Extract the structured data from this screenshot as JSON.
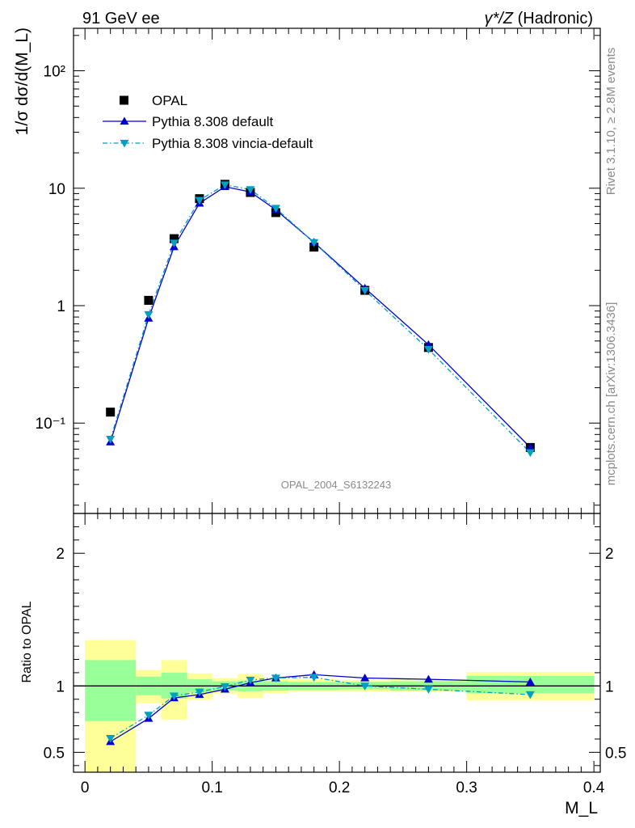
{
  "header": {
    "left": "91 GeV ee",
    "right_prefix": "γ*/Z",
    "right_suffix": " (Hadronic)"
  },
  "side_text": {
    "rivet": "Rivet 3.1.10, ≥ 2.8M events",
    "mcplots": "mcplots.cern.ch [arXiv:1306.3436]"
  },
  "analysis_id": "OPAL_2004_S6132243",
  "colors": {
    "data": "#000000",
    "pythia_default": "#0000cc",
    "pythia_vincia": "#00a0c0",
    "band_inner": "#99ff99",
    "band_outer": "#ffff99"
  },
  "chart_data": [
    {
      "type": "scatter",
      "panel": "main",
      "ylabel": "1/σ dσ/d(M_L)",
      "yscale": "log",
      "ylim": [
        0.017,
        230
      ],
      "xlim": [
        -0.009,
        0.405
      ],
      "y_ticks": [
        "10⁻¹",
        "1",
        "10",
        "10²"
      ],
      "legend_position": "top-left",
      "series": [
        {
          "name": "OPAL",
          "style": "square",
          "x": [
            0.02,
            0.05,
            0.07,
            0.09,
            0.11,
            0.13,
            0.15,
            0.18,
            0.22,
            0.27,
            0.35
          ],
          "values": [
            0.124,
            1.11,
            3.72,
            8.15,
            10.8,
            9.2,
            6.2,
            3.15,
            1.35,
            0.44,
            0.062
          ]
        },
        {
          "name": "Pythia 8.308 default",
          "style": "triangle-up",
          "x": [
            0.02,
            0.05,
            0.07,
            0.09,
            0.11,
            0.13,
            0.15,
            0.18,
            0.22,
            0.27,
            0.35
          ],
          "values": [
            0.069,
            0.78,
            3.17,
            7.45,
            10.3,
            9.3,
            6.55,
            3.46,
            1.41,
            0.465,
            0.062
          ]
        },
        {
          "name": "Pythia 8.308 vincia-default",
          "style": "triangle-down",
          "x": [
            0.02,
            0.05,
            0.07,
            0.09,
            0.11,
            0.13,
            0.15,
            0.18,
            0.22,
            0.27,
            0.35
          ],
          "values": [
            0.073,
            0.84,
            3.42,
            7.9,
            10.7,
            9.75,
            6.75,
            3.45,
            1.35,
            0.425,
            0.056
          ]
        }
      ]
    },
    {
      "type": "line",
      "panel": "ratio",
      "ylabel": "Ratio to OPAL",
      "xlabel": "M_L",
      "ylim": [
        0.35,
        2.3
      ],
      "xlim": [
        -0.009,
        0.405
      ],
      "x_ticks": [
        "0",
        "0.1",
        "0.2",
        "0.3",
        "0.4"
      ],
      "y_ticks": [
        "0.5",
        "1",
        "2"
      ],
      "bands": [
        {
          "x0": 0.0,
          "x1": 0.04,
          "inner": [
            0.735,
            1.195
          ],
          "outer": [
            0.35,
            1.345
          ]
        },
        {
          "x0": 0.04,
          "x1": 0.06,
          "inner": [
            0.93,
            1.07
          ],
          "outer": [
            0.87,
            1.12
          ]
        },
        {
          "x0": 0.06,
          "x1": 0.08,
          "inner": [
            0.905,
            1.1
          ],
          "outer": [
            0.745,
            1.195
          ]
        },
        {
          "x0": 0.08,
          "x1": 0.1,
          "inner": [
            0.95,
            1.05
          ],
          "outer": [
            0.895,
            1.095
          ]
        },
        {
          "x0": 0.1,
          "x1": 0.12,
          "inner": [
            0.965,
            1.035
          ],
          "outer": [
            0.94,
            1.06
          ]
        },
        {
          "x0": 0.12,
          "x1": 0.14,
          "inner": [
            0.96,
            1.04
          ],
          "outer": [
            0.91,
            1.09
          ]
        },
        {
          "x0": 0.14,
          "x1": 0.16,
          "inner": [
            0.965,
            1.035
          ],
          "outer": [
            0.945,
            1.06
          ]
        },
        {
          "x0": 0.16,
          "x1": 0.2,
          "inner": [
            0.97,
            1.03
          ],
          "outer": [
            0.96,
            1.05
          ]
        },
        {
          "x0": 0.2,
          "x1": 0.24,
          "inner": [
            0.975,
            1.03
          ],
          "outer": [
            0.96,
            1.045
          ]
        },
        {
          "x0": 0.24,
          "x1": 0.3,
          "inner": [
            0.965,
            1.035
          ],
          "outer": [
            0.955,
            1.055
          ]
        },
        {
          "x0": 0.3,
          "x1": 0.4,
          "inner": [
            0.945,
            1.075
          ],
          "outer": [
            0.89,
            1.105
          ]
        }
      ],
      "series": [
        {
          "name": "Pythia 8.308 default",
          "style": "triangle-up",
          "x": [
            0.02,
            0.05,
            0.07,
            0.09,
            0.11,
            0.13,
            0.15,
            0.18,
            0.22,
            0.27,
            0.35
          ],
          "values": [
            0.58,
            0.755,
            0.91,
            0.935,
            0.975,
            1.025,
            1.06,
            1.085,
            1.06,
            1.05,
            1.03
          ]
        },
        {
          "name": "Pythia 8.308 vincia-default",
          "style": "triangle-down",
          "x": [
            0.02,
            0.05,
            0.07,
            0.09,
            0.11,
            0.13,
            0.15,
            0.18,
            0.22,
            0.27,
            0.35
          ],
          "values": [
            0.605,
            0.78,
            0.925,
            0.955,
            0.995,
            1.045,
            1.06,
            1.065,
            1.0,
            0.975,
            0.935
          ]
        }
      ]
    }
  ]
}
